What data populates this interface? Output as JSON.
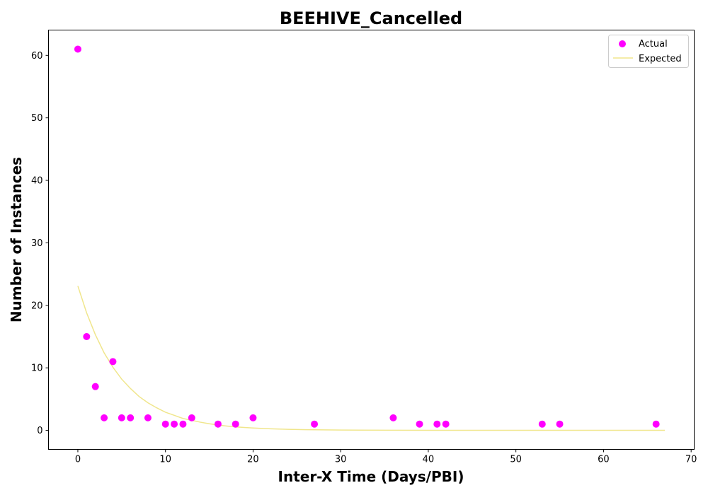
{
  "chart_data": {
    "type": "scatter",
    "title": "BEEHIVE_Cancelled",
    "xlabel": "Inter-X Time (Days/PBI)",
    "ylabel": "Number of Instances",
    "xlim": [
      -3.35,
      70.35
    ],
    "ylim": [
      -3.05,
      64.05
    ],
    "xticks": [
      0,
      10,
      20,
      30,
      40,
      50,
      60,
      70
    ],
    "yticks": [
      0,
      10,
      20,
      30,
      40,
      50,
      60
    ],
    "grid": false,
    "legend_position": "upper right",
    "series": [
      {
        "name": "Actual",
        "kind": "scatter",
        "color": "#ff00ff",
        "points": [
          [
            0,
            61
          ],
          [
            1,
            15
          ],
          [
            2,
            7
          ],
          [
            3,
            2
          ],
          [
            4,
            11
          ],
          [
            5,
            2
          ],
          [
            6,
            2
          ],
          [
            8,
            2
          ],
          [
            10,
            1
          ],
          [
            11,
            1
          ],
          [
            12,
            1
          ],
          [
            13,
            2
          ],
          [
            16,
            1
          ],
          [
            18,
            1
          ],
          [
            20,
            2
          ],
          [
            27,
            1
          ],
          [
            36,
            2
          ],
          [
            39,
            1
          ],
          [
            41,
            1
          ],
          [
            42,
            1
          ],
          [
            53,
            1
          ],
          [
            55,
            1
          ],
          [
            66,
            1
          ]
        ]
      },
      {
        "name": "Expected",
        "kind": "line",
        "color": "#f0e68c",
        "x": [
          0,
          1,
          2,
          3,
          4,
          5,
          6,
          7,
          8,
          9,
          10,
          11,
          12,
          13,
          14,
          15,
          16,
          17,
          18,
          19,
          20,
          22,
          24,
          26,
          28,
          30,
          35,
          40,
          45,
          50,
          55,
          60,
          67
        ],
        "y": [
          23.1,
          18.8,
          15.3,
          12.4,
          10.1,
          8.2,
          6.7,
          5.4,
          4.4,
          3.6,
          2.9,
          2.4,
          1.9,
          1.6,
          1.3,
          1.05,
          0.85,
          0.69,
          0.56,
          0.46,
          0.37,
          0.25,
          0.16,
          0.11,
          0.07,
          0.05,
          0.02,
          0.01,
          0.0,
          0.0,
          0.0,
          0.0,
          0.0
        ]
      }
    ]
  }
}
